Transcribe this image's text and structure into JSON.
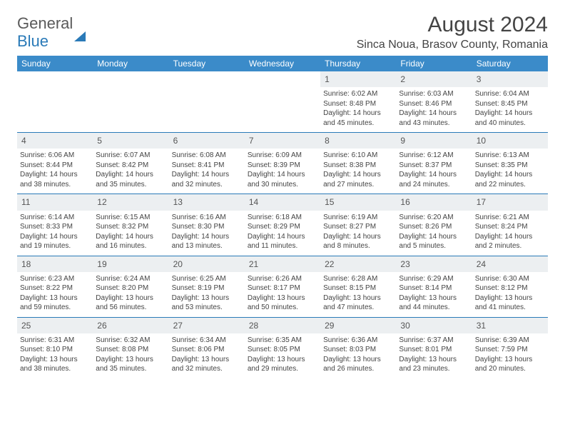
{
  "logo": {
    "part1": "General",
    "part2": "Blue"
  },
  "title": "August 2024",
  "location": "Sinca Noua, Brasov County, Romania",
  "colors": {
    "header_bg": "#3b8bc9",
    "header_text": "#ffffff",
    "daynum_bg": "#eceff1",
    "border": "#2a7ab8",
    "logo_gray": "#5a5a5a",
    "logo_blue": "#2a7ab8",
    "body_text": "#444444",
    "page_bg": "#ffffff"
  },
  "fonts": {
    "title_size_pt": 22,
    "location_size_pt": 12,
    "dayname_size_pt": 9,
    "daynum_size_pt": 9,
    "cell_size_pt": 7.5
  },
  "weekdays": [
    "Sunday",
    "Monday",
    "Tuesday",
    "Wednesday",
    "Thursday",
    "Friday",
    "Saturday"
  ],
  "weeks": [
    {
      "nums": [
        "",
        "",
        "",
        "",
        "1",
        "2",
        "3"
      ],
      "cells": [
        {},
        {},
        {},
        {},
        {
          "sunrise": "Sunrise: 6:02 AM",
          "sunset": "Sunset: 8:48 PM",
          "daylight": "Daylight: 14 hours and 45 minutes."
        },
        {
          "sunrise": "Sunrise: 6:03 AM",
          "sunset": "Sunset: 8:46 PM",
          "daylight": "Daylight: 14 hours and 43 minutes."
        },
        {
          "sunrise": "Sunrise: 6:04 AM",
          "sunset": "Sunset: 8:45 PM",
          "daylight": "Daylight: 14 hours and 40 minutes."
        }
      ]
    },
    {
      "nums": [
        "4",
        "5",
        "6",
        "7",
        "8",
        "9",
        "10"
      ],
      "cells": [
        {
          "sunrise": "Sunrise: 6:06 AM",
          "sunset": "Sunset: 8:44 PM",
          "daylight": "Daylight: 14 hours and 38 minutes."
        },
        {
          "sunrise": "Sunrise: 6:07 AM",
          "sunset": "Sunset: 8:42 PM",
          "daylight": "Daylight: 14 hours and 35 minutes."
        },
        {
          "sunrise": "Sunrise: 6:08 AM",
          "sunset": "Sunset: 8:41 PM",
          "daylight": "Daylight: 14 hours and 32 minutes."
        },
        {
          "sunrise": "Sunrise: 6:09 AM",
          "sunset": "Sunset: 8:39 PM",
          "daylight": "Daylight: 14 hours and 30 minutes."
        },
        {
          "sunrise": "Sunrise: 6:10 AM",
          "sunset": "Sunset: 8:38 PM",
          "daylight": "Daylight: 14 hours and 27 minutes."
        },
        {
          "sunrise": "Sunrise: 6:12 AM",
          "sunset": "Sunset: 8:37 PM",
          "daylight": "Daylight: 14 hours and 24 minutes."
        },
        {
          "sunrise": "Sunrise: 6:13 AM",
          "sunset": "Sunset: 8:35 PM",
          "daylight": "Daylight: 14 hours and 22 minutes."
        }
      ]
    },
    {
      "nums": [
        "11",
        "12",
        "13",
        "14",
        "15",
        "16",
        "17"
      ],
      "cells": [
        {
          "sunrise": "Sunrise: 6:14 AM",
          "sunset": "Sunset: 8:33 PM",
          "daylight": "Daylight: 14 hours and 19 minutes."
        },
        {
          "sunrise": "Sunrise: 6:15 AM",
          "sunset": "Sunset: 8:32 PM",
          "daylight": "Daylight: 14 hours and 16 minutes."
        },
        {
          "sunrise": "Sunrise: 6:16 AM",
          "sunset": "Sunset: 8:30 PM",
          "daylight": "Daylight: 14 hours and 13 minutes."
        },
        {
          "sunrise": "Sunrise: 6:18 AM",
          "sunset": "Sunset: 8:29 PM",
          "daylight": "Daylight: 14 hours and 11 minutes."
        },
        {
          "sunrise": "Sunrise: 6:19 AM",
          "sunset": "Sunset: 8:27 PM",
          "daylight": "Daylight: 14 hours and 8 minutes."
        },
        {
          "sunrise": "Sunrise: 6:20 AM",
          "sunset": "Sunset: 8:26 PM",
          "daylight": "Daylight: 14 hours and 5 minutes."
        },
        {
          "sunrise": "Sunrise: 6:21 AM",
          "sunset": "Sunset: 8:24 PM",
          "daylight": "Daylight: 14 hours and 2 minutes."
        }
      ]
    },
    {
      "nums": [
        "18",
        "19",
        "20",
        "21",
        "22",
        "23",
        "24"
      ],
      "cells": [
        {
          "sunrise": "Sunrise: 6:23 AM",
          "sunset": "Sunset: 8:22 PM",
          "daylight": "Daylight: 13 hours and 59 minutes."
        },
        {
          "sunrise": "Sunrise: 6:24 AM",
          "sunset": "Sunset: 8:20 PM",
          "daylight": "Daylight: 13 hours and 56 minutes."
        },
        {
          "sunrise": "Sunrise: 6:25 AM",
          "sunset": "Sunset: 8:19 PM",
          "daylight": "Daylight: 13 hours and 53 minutes."
        },
        {
          "sunrise": "Sunrise: 6:26 AM",
          "sunset": "Sunset: 8:17 PM",
          "daylight": "Daylight: 13 hours and 50 minutes."
        },
        {
          "sunrise": "Sunrise: 6:28 AM",
          "sunset": "Sunset: 8:15 PM",
          "daylight": "Daylight: 13 hours and 47 minutes."
        },
        {
          "sunrise": "Sunrise: 6:29 AM",
          "sunset": "Sunset: 8:14 PM",
          "daylight": "Daylight: 13 hours and 44 minutes."
        },
        {
          "sunrise": "Sunrise: 6:30 AM",
          "sunset": "Sunset: 8:12 PM",
          "daylight": "Daylight: 13 hours and 41 minutes."
        }
      ]
    },
    {
      "nums": [
        "25",
        "26",
        "27",
        "28",
        "29",
        "30",
        "31"
      ],
      "cells": [
        {
          "sunrise": "Sunrise: 6:31 AM",
          "sunset": "Sunset: 8:10 PM",
          "daylight": "Daylight: 13 hours and 38 minutes."
        },
        {
          "sunrise": "Sunrise: 6:32 AM",
          "sunset": "Sunset: 8:08 PM",
          "daylight": "Daylight: 13 hours and 35 minutes."
        },
        {
          "sunrise": "Sunrise: 6:34 AM",
          "sunset": "Sunset: 8:06 PM",
          "daylight": "Daylight: 13 hours and 32 minutes."
        },
        {
          "sunrise": "Sunrise: 6:35 AM",
          "sunset": "Sunset: 8:05 PM",
          "daylight": "Daylight: 13 hours and 29 minutes."
        },
        {
          "sunrise": "Sunrise: 6:36 AM",
          "sunset": "Sunset: 8:03 PM",
          "daylight": "Daylight: 13 hours and 26 minutes."
        },
        {
          "sunrise": "Sunrise: 6:37 AM",
          "sunset": "Sunset: 8:01 PM",
          "daylight": "Daylight: 13 hours and 23 minutes."
        },
        {
          "sunrise": "Sunrise: 6:39 AM",
          "sunset": "Sunset: 7:59 PM",
          "daylight": "Daylight: 13 hours and 20 minutes."
        }
      ]
    }
  ]
}
